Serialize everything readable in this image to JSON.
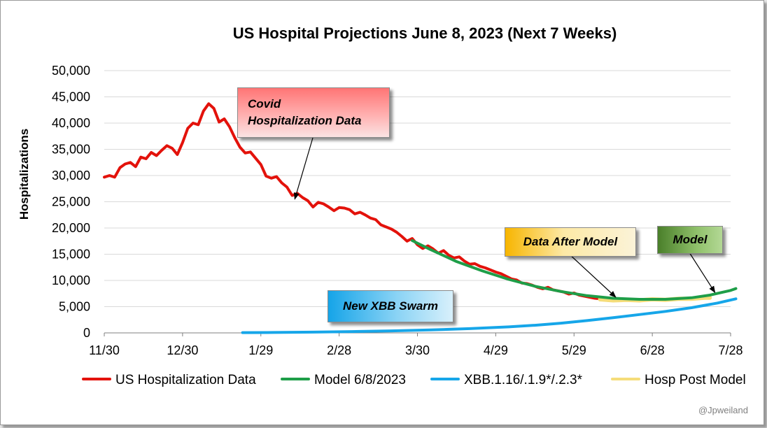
{
  "chart_data": {
    "type": "line",
    "title": "US Hospital Projections June 8, 2023 (Next 7 Weeks)",
    "ylabel": "Hospitalizations",
    "xlabel": "",
    "ylim": [
      0,
      50000
    ],
    "yticks": [
      "0",
      "5,000",
      "10,000",
      "15,000",
      "20,000",
      "25,000",
      "30,000",
      "35,000",
      "40,000",
      "45,000",
      "50,000"
    ],
    "xticks": [
      "11/30",
      "12/30",
      "1/29",
      "2/28",
      "3/30",
      "4/29",
      "5/29",
      "6/28",
      "7/28"
    ],
    "x_axis": "days from 11/30/2022 to 7/28/2023",
    "grid": true,
    "legend_position": "bottom",
    "series": [
      {
        "name": "US Hospitalization Data",
        "color": "#e3120b",
        "points": [
          [
            0,
            29700
          ],
          [
            2,
            30000
          ],
          [
            4,
            29700
          ],
          [
            6,
            31500
          ],
          [
            8,
            32200
          ],
          [
            10,
            32500
          ],
          [
            12,
            31700
          ],
          [
            14,
            33500
          ],
          [
            16,
            33200
          ],
          [
            18,
            34400
          ],
          [
            20,
            33800
          ],
          [
            22,
            34800
          ],
          [
            24,
            35700
          ],
          [
            26,
            35200
          ],
          [
            28,
            34000
          ],
          [
            30,
            36300
          ],
          [
            32,
            39000
          ],
          [
            34,
            40000
          ],
          [
            36,
            39700
          ],
          [
            38,
            42300
          ],
          [
            40,
            43700
          ],
          [
            42,
            42800
          ],
          [
            44,
            40200
          ],
          [
            46,
            40800
          ],
          [
            48,
            39300
          ],
          [
            50,
            37200
          ],
          [
            52,
            35400
          ],
          [
            54,
            34300
          ],
          [
            56,
            34500
          ],
          [
            58,
            33300
          ],
          [
            60,
            32100
          ],
          [
            62,
            29900
          ],
          [
            64,
            29500
          ],
          [
            66,
            29800
          ],
          [
            68,
            28600
          ],
          [
            70,
            27800
          ],
          [
            72,
            26200
          ],
          [
            74,
            26600
          ],
          [
            76,
            25800
          ],
          [
            78,
            25200
          ],
          [
            80,
            24000
          ],
          [
            82,
            24900
          ],
          [
            84,
            24600
          ],
          [
            86,
            24000
          ],
          [
            88,
            23300
          ],
          [
            90,
            23900
          ],
          [
            92,
            23800
          ],
          [
            94,
            23500
          ],
          [
            96,
            22700
          ],
          [
            98,
            23000
          ],
          [
            100,
            22500
          ],
          [
            102,
            21900
          ],
          [
            104,
            21600
          ],
          [
            106,
            20600
          ],
          [
            108,
            20200
          ],
          [
            110,
            19800
          ],
          [
            112,
            19200
          ],
          [
            114,
            18400
          ],
          [
            116,
            17500
          ],
          [
            118,
            18000
          ],
          [
            120,
            16800
          ],
          [
            122,
            16100
          ],
          [
            124,
            16600
          ],
          [
            126,
            16000
          ],
          [
            128,
            15200
          ],
          [
            130,
            15700
          ],
          [
            132,
            14800
          ],
          [
            134,
            14300
          ],
          [
            136,
            14500
          ],
          [
            138,
            13700
          ],
          [
            140,
            13100
          ],
          [
            142,
            13200
          ],
          [
            144,
            12700
          ],
          [
            146,
            12400
          ],
          [
            148,
            12000
          ],
          [
            150,
            11600
          ],
          [
            152,
            11300
          ],
          [
            154,
            10800
          ],
          [
            156,
            10300
          ],
          [
            158,
            10100
          ],
          [
            160,
            9500
          ],
          [
            162,
            9400
          ],
          [
            164,
            9100
          ],
          [
            166,
            8700
          ],
          [
            168,
            8400
          ],
          [
            170,
            8700
          ],
          [
            172,
            8200
          ],
          [
            174,
            8000
          ],
          [
            176,
            7800
          ],
          [
            178,
            7400
          ],
          [
            180,
            7600
          ],
          [
            182,
            7200
          ],
          [
            184,
            7000
          ],
          [
            186,
            6800
          ],
          [
            188,
            6600
          ],
          [
            190,
            6500
          ]
        ]
      },
      {
        "name": "Model 6/8/2023",
        "color": "#1e9e48",
        "points": [
          [
            118,
            17600
          ],
          [
            125,
            15900
          ],
          [
            135,
            13600
          ],
          [
            145,
            11800
          ],
          [
            155,
            10200
          ],
          [
            165,
            8900
          ],
          [
            175,
            7900
          ],
          [
            185,
            7100
          ],
          [
            195,
            6600
          ],
          [
            205,
            6400
          ],
          [
            215,
            6400
          ],
          [
            225,
            6700
          ],
          [
            232,
            7200
          ],
          [
            240,
            8100
          ],
          [
            242,
            8450
          ]
        ]
      },
      {
        "name": "XBB.1.16/.1.9*/.2.3*",
        "color": "#16a6e9",
        "points": [
          [
            53,
            50
          ],
          [
            65,
            80
          ],
          [
            80,
            150
          ],
          [
            95,
            250
          ],
          [
            110,
            380
          ],
          [
            125,
            560
          ],
          [
            140,
            820
          ],
          [
            155,
            1150
          ],
          [
            165,
            1450
          ],
          [
            175,
            1850
          ],
          [
            185,
            2350
          ],
          [
            195,
            2900
          ],
          [
            205,
            3500
          ],
          [
            215,
            4100
          ],
          [
            225,
            4800
          ],
          [
            235,
            5700
          ],
          [
            242,
            6500
          ]
        ]
      },
      {
        "name": "Hosp Post Model",
        "color": "#f5dd7a",
        "points": [
          [
            190,
            6400
          ],
          [
            195,
            6200
          ],
          [
            200,
            6300
          ],
          [
            205,
            6200
          ],
          [
            210,
            6400
          ],
          [
            215,
            6300
          ],
          [
            220,
            6500
          ],
          [
            225,
            6500
          ],
          [
            230,
            6700
          ],
          [
            232,
            6700
          ]
        ]
      }
    ],
    "annotations": [
      {
        "text": "Covid\nHospitalization Data",
        "arrow_to": [
          73,
          25500
        ]
      },
      {
        "text": "Data After Model",
        "arrow_to": [
          196,
          6800
        ]
      },
      {
        "text": "Model",
        "arrow_to": [
          234,
          7700
        ]
      },
      {
        "text": "New XBB Swarm"
      }
    ]
  },
  "credit": "@Jpweiland"
}
